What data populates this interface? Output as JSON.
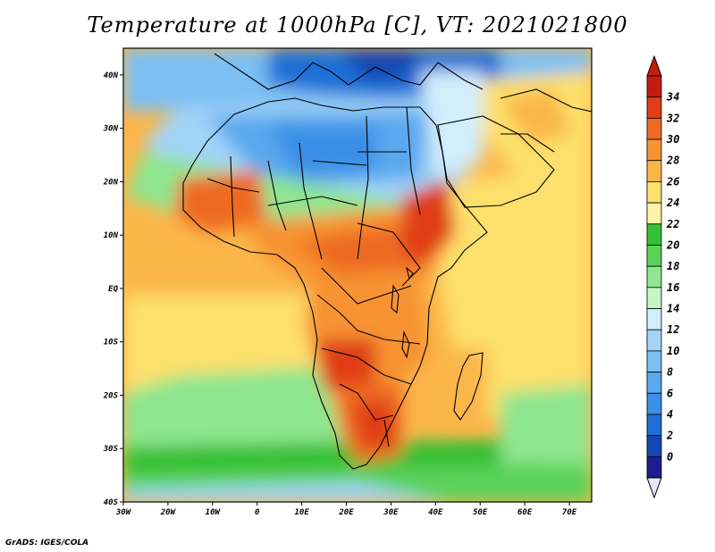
{
  "title": "Temperature at 1000hPa [C], VT: 2021021800",
  "footer": "GrADS: IGES/COLA",
  "map": {
    "lat_range": [
      -40,
      45
    ],
    "lon_range": [
      -30,
      75
    ],
    "lat_ticks": [
      {
        "value": 40,
        "label": "40N"
      },
      {
        "value": 30,
        "label": "30N"
      },
      {
        "value": 20,
        "label": "20N"
      },
      {
        "value": 10,
        "label": "10N"
      },
      {
        "value": 0,
        "label": "EQ"
      },
      {
        "value": -10,
        "label": "10S"
      },
      {
        "value": -20,
        "label": "20S"
      },
      {
        "value": -30,
        "label": "30S"
      },
      {
        "value": -40,
        "label": "40S"
      }
    ],
    "lon_ticks": [
      {
        "value": -30,
        "label": "30W"
      },
      {
        "value": -20,
        "label": "20W"
      },
      {
        "value": -10,
        "label": "10W"
      },
      {
        "value": 0,
        "label": "0"
      },
      {
        "value": 10,
        "label": "10E"
      },
      {
        "value": 20,
        "label": "20E"
      },
      {
        "value": 30,
        "label": "30E"
      },
      {
        "value": 40,
        "label": "40E"
      },
      {
        "value": 50,
        "label": "50E"
      },
      {
        "value": 60,
        "label": "60E"
      },
      {
        "value": 70,
        "label": "70E"
      }
    ]
  },
  "colorbar": {
    "levels": [
      "0",
      "2",
      "4",
      "6",
      "8",
      "10",
      "12",
      "14",
      "16",
      "18",
      "20",
      "22",
      "24",
      "26",
      "28",
      "30",
      "32",
      "34"
    ],
    "colors": [
      "#1c1e8e",
      "#1446b4",
      "#1f6fd6",
      "#3a8fe6",
      "#5aa8ee",
      "#7cbff3",
      "#a2d4f7",
      "#d2eefb",
      "#c8f5c8",
      "#8ee68e",
      "#5ad25a",
      "#34c034",
      "#fff3a8",
      "#fde06c",
      "#fbb64a",
      "#f79330",
      "#ee6a22",
      "#e03d18",
      "#c41c10"
    ],
    "under_color": "#e6e6f8",
    "over_color": "#c41c10"
  }
}
